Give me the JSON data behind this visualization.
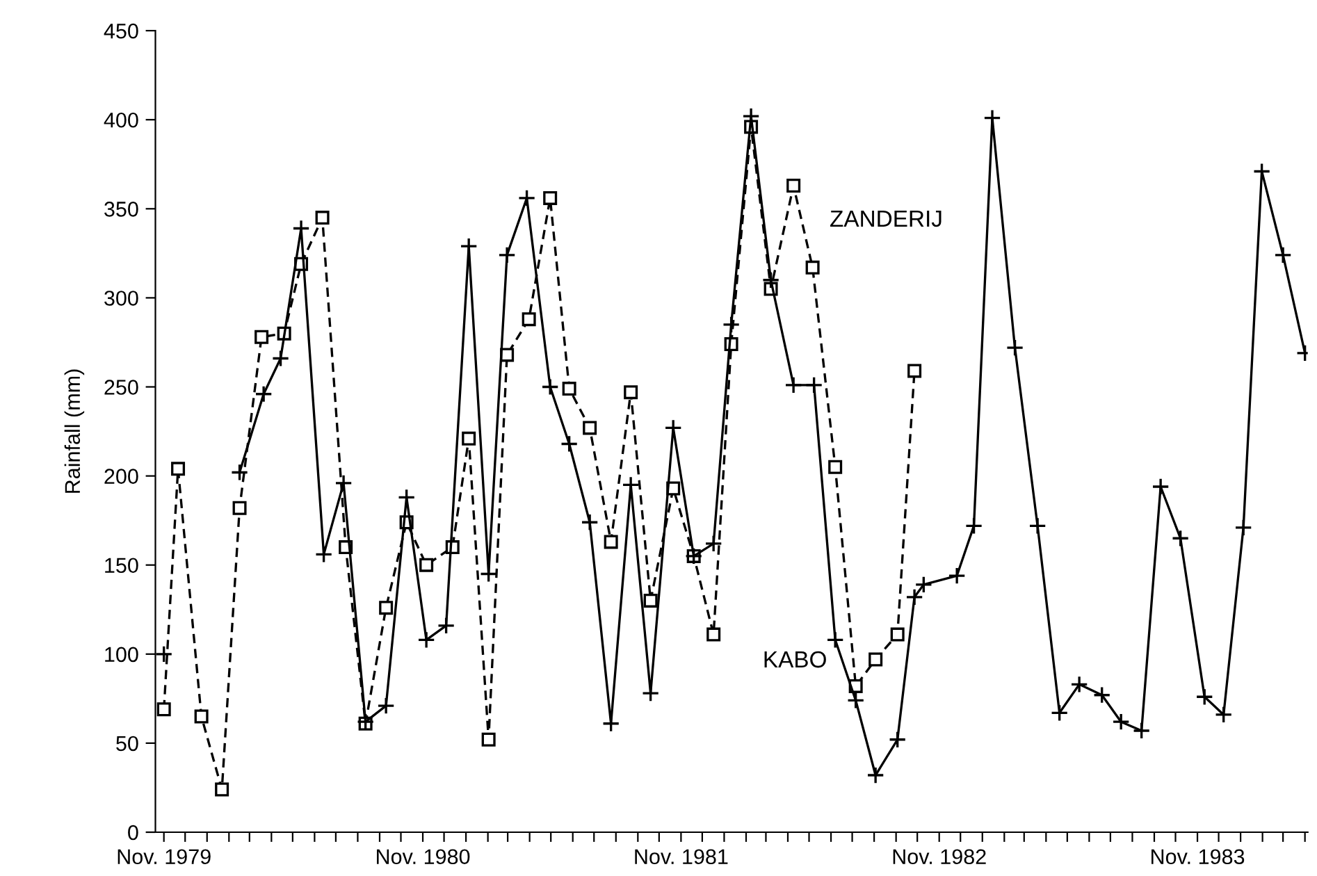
{
  "chart_data": {
    "type": "line",
    "ylabel": "Rainfall (mm)",
    "xlim": [
      "1979-10-20",
      "1984-04-05"
    ],
    "ylim": [
      0,
      450
    ],
    "yticks": [
      0,
      50,
      100,
      150,
      200,
      250,
      300,
      350,
      400,
      450
    ],
    "xticks": [
      {
        "value": "1979-11-01",
        "label": "Nov. 1979"
      },
      {
        "value": "1979-12-01",
        "label": null
      },
      {
        "value": "1980-01-01",
        "label": null
      },
      {
        "value": "1980-02-01",
        "label": null
      },
      {
        "value": "1980-03-01",
        "label": null
      },
      {
        "value": "1980-04-01",
        "label": null
      },
      {
        "value": "1980-05-01",
        "label": null
      },
      {
        "value": "1980-06-01",
        "label": null
      },
      {
        "value": "1980-07-01",
        "label": null
      },
      {
        "value": "1980-08-01",
        "label": null
      },
      {
        "value": "1980-09-01",
        "label": null
      },
      {
        "value": "1980-10-01",
        "label": null
      },
      {
        "value": "1980-11-01",
        "label": "Nov. 1980"
      },
      {
        "value": "1980-12-01",
        "label": null
      },
      {
        "value": "1981-01-01",
        "label": null
      },
      {
        "value": "1981-02-01",
        "label": null
      },
      {
        "value": "1981-03-01",
        "label": null
      },
      {
        "value": "1981-04-01",
        "label": null
      },
      {
        "value": "1981-05-01",
        "label": null
      },
      {
        "value": "1981-06-01",
        "label": null
      },
      {
        "value": "1981-07-01",
        "label": null
      },
      {
        "value": "1981-08-01",
        "label": null
      },
      {
        "value": "1981-09-01",
        "label": null
      },
      {
        "value": "1981-10-01",
        "label": null
      },
      {
        "value": "1981-11-01",
        "label": "Nov. 1981"
      },
      {
        "value": "1981-12-01",
        "label": null
      },
      {
        "value": "1982-01-01",
        "label": null
      },
      {
        "value": "1982-02-01",
        "label": null
      },
      {
        "value": "1982-03-01",
        "label": null
      },
      {
        "value": "1982-04-01",
        "label": null
      },
      {
        "value": "1982-05-01",
        "label": null
      },
      {
        "value": "1982-06-01",
        "label": null
      },
      {
        "value": "1982-07-01",
        "label": null
      },
      {
        "value": "1982-08-01",
        "label": null
      },
      {
        "value": "1982-09-01",
        "label": null
      },
      {
        "value": "1982-10-01",
        "label": null
      },
      {
        "value": "1982-11-01",
        "label": "Nov. 1982"
      },
      {
        "value": "1982-12-01",
        "label": null
      },
      {
        "value": "1983-01-01",
        "label": null
      },
      {
        "value": "1983-02-01",
        "label": null
      },
      {
        "value": "1983-03-01",
        "label": null
      },
      {
        "value": "1983-04-01",
        "label": null
      },
      {
        "value": "1983-05-01",
        "label": null
      },
      {
        "value": "1983-06-01",
        "label": null
      },
      {
        "value": "1983-07-01",
        "label": null
      },
      {
        "value": "1983-08-01",
        "label": null
      },
      {
        "value": "1983-09-01",
        "label": null
      },
      {
        "value": "1983-10-01",
        "label": null
      },
      {
        "value": "1983-11-01",
        "label": "Nov. 1983"
      },
      {
        "value": "1983-12-01",
        "label": null
      },
      {
        "value": "1984-01-01",
        "label": null
      },
      {
        "value": "1984-02-01",
        "label": null
      },
      {
        "value": "1984-03-01",
        "label": null
      },
      {
        "value": "1984-04-01",
        "label": null
      }
    ],
    "grid": false,
    "legend": false,
    "series": [
      {
        "color": "#000000",
        "marker": "square",
        "line_style": "dashed",
        "x": [
          "1979-11-01",
          "1979-11-21",
          "1979-12-24",
          "1980-01-22",
          "1980-02-16",
          "1980-03-18",
          "1980-04-19",
          "1980-05-13",
          "1980-06-12",
          "1980-07-15",
          "1980-08-12",
          "1980-09-10",
          "1980-10-09",
          "1980-11-06",
          "1980-12-13",
          "1981-01-05",
          "1981-02-02",
          "1981-02-28",
          "1981-03-31",
          "1981-04-30",
          "1981-05-27",
          "1981-06-25",
          "1981-07-25",
          "1981-08-22",
          "1981-09-19",
          "1981-10-21",
          "1981-11-19",
          "1981-12-17",
          "1982-01-11",
          "1982-02-08",
          "1982-03-08",
          "1982-04-09",
          "1982-05-06",
          "1982-06-07",
          "1982-07-06",
          "1982-08-03",
          "1982-09-03",
          "1982-09-27"
        ],
        "values": [
          69,
          204,
          65,
          24,
          182,
          278,
          280,
          319,
          345,
          160,
          61,
          126,
          174,
          150,
          160,
          221,
          52,
          268,
          288,
          356,
          249,
          227,
          163,
          247,
          130,
          193,
          155,
          111,
          274,
          396,
          305,
          363,
          317,
          205,
          82,
          97,
          111,
          259
        ]
      },
      {
        "color": "#000000",
        "marker": "cross",
        "line_style": "solid",
        "x": [
          "1979-11-01",
          "1980-01-01",
          "1980-02-16",
          "1980-03-21",
          "1980-04-14",
          "1980-05-13",
          "1980-06-14",
          "1980-07-12",
          "1980-08-12",
          "1980-09-10",
          "1980-10-09",
          "1980-11-06",
          "1980-12-04",
          "1981-01-05",
          "1981-02-02",
          "1981-02-28",
          "1981-03-28",
          "1981-04-30",
          "1981-05-27",
          "1981-06-25",
          "1981-07-25",
          "1981-08-22",
          "1981-09-19",
          "1981-10-21",
          "1981-11-19",
          "1981-12-17",
          "1982-01-11",
          "1982-02-08",
          "1982-03-08",
          "1982-04-09",
          "1982-05-08",
          "1982-06-07",
          "1982-07-06",
          "1982-08-03",
          "1982-09-03",
          "1982-09-27",
          "1982-10-10",
          "1982-11-26",
          "1982-12-20",
          "1983-01-15",
          "1983-02-16",
          "1983-03-20",
          "1983-04-20",
          "1983-05-18",
          "1983-06-19",
          "1983-07-16",
          "1983-08-14",
          "1983-09-10",
          "1983-10-08",
          "1983-11-11",
          "1983-12-08",
          "1984-01-05",
          "1984-01-31",
          "1984-03-01",
          "1984-04-01"
        ],
        "values": [
          100,
          null,
          202,
          246,
          266,
          339,
          156,
          196,
          62,
          71,
          188,
          108,
          116,
          329,
          145,
          324,
          356,
          250,
          218,
          174,
          61,
          195,
          78,
          227,
          155,
          162,
          285,
          402,
          310,
          251,
          251,
          108,
          74,
          32,
          52,
          132,
          139,
          144,
          172,
          401,
          272,
          172,
          67,
          83,
          77,
          62,
          57,
          194,
          165,
          76,
          66,
          171,
          371,
          324,
          269
        ]
      }
    ],
    "annotations": [
      "ZANDERIJ",
      "KABO"
    ]
  }
}
